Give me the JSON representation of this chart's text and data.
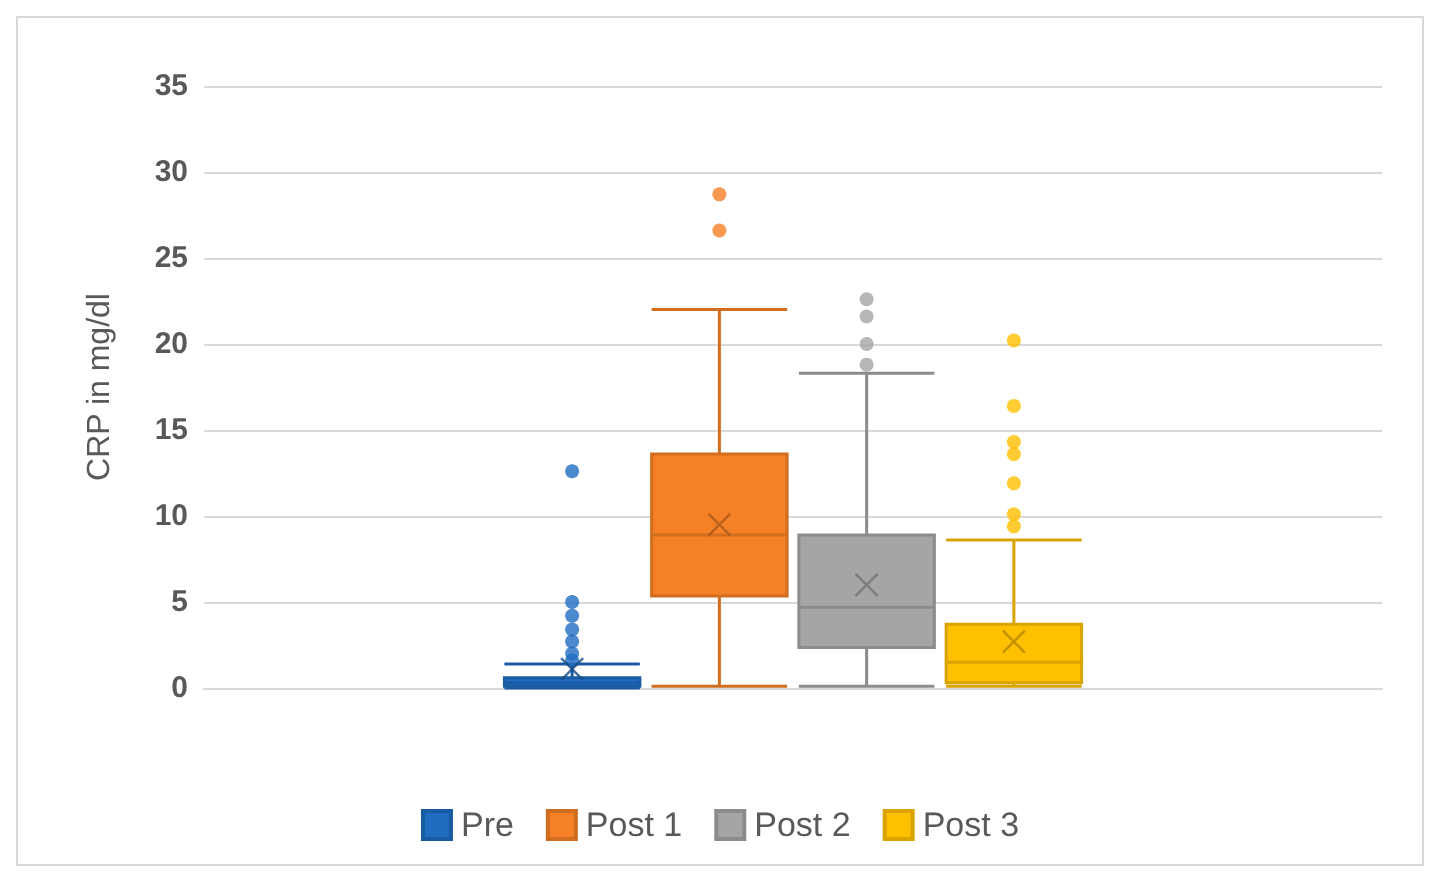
{
  "chart_data": {
    "type": "box",
    "ylabel": "CRP in mg/dl",
    "categories": [
      null
    ],
    "ylim": [
      0,
      35
    ],
    "yticks": [
      0,
      5,
      10,
      15,
      20,
      25,
      30,
      35
    ],
    "grid": "y",
    "legend": "bottom",
    "series": [
      {
        "name": "Pre",
        "color": "#1f6cc0",
        "boxes": [
          {
            "low": 0.0,
            "q1": 0.1,
            "median": 0.3,
            "q3": 0.6,
            "high": 1.4,
            "mean": 1.1,
            "outliers": [
              1.6,
              2.0,
              2.7,
              3.4,
              4.2,
              5.0,
              12.6
            ]
          }
        ]
      },
      {
        "name": "Post 1",
        "color": "#f58025",
        "boxes": [
          {
            "low": 0.1,
            "q1": 5.35,
            "median": 8.9,
            "q3": 13.6,
            "high": 22.0,
            "mean": 9.5,
            "outliers": [
              26.6,
              28.7
            ]
          }
        ]
      },
      {
        "name": "Post 2",
        "color": "#a5a5a5",
        "boxes": [
          {
            "low": 0.1,
            "q1": 2.35,
            "median": 4.7,
            "q3": 8.9,
            "high": 18.3,
            "mean": 6.0,
            "outliers": [
              18.8,
              20.0,
              21.6,
              22.6
            ]
          }
        ]
      },
      {
        "name": "Post 3",
        "color": "#ffc000",
        "boxes": [
          {
            "low": 0.1,
            "q1": 0.3,
            "median": 1.5,
            "q3": 3.7,
            "high": 8.6,
            "mean": 2.7,
            "outliers": [
              9.4,
              10.1,
              11.9,
              13.6,
              14.3,
              16.4,
              20.2
            ]
          }
        ]
      }
    ]
  }
}
